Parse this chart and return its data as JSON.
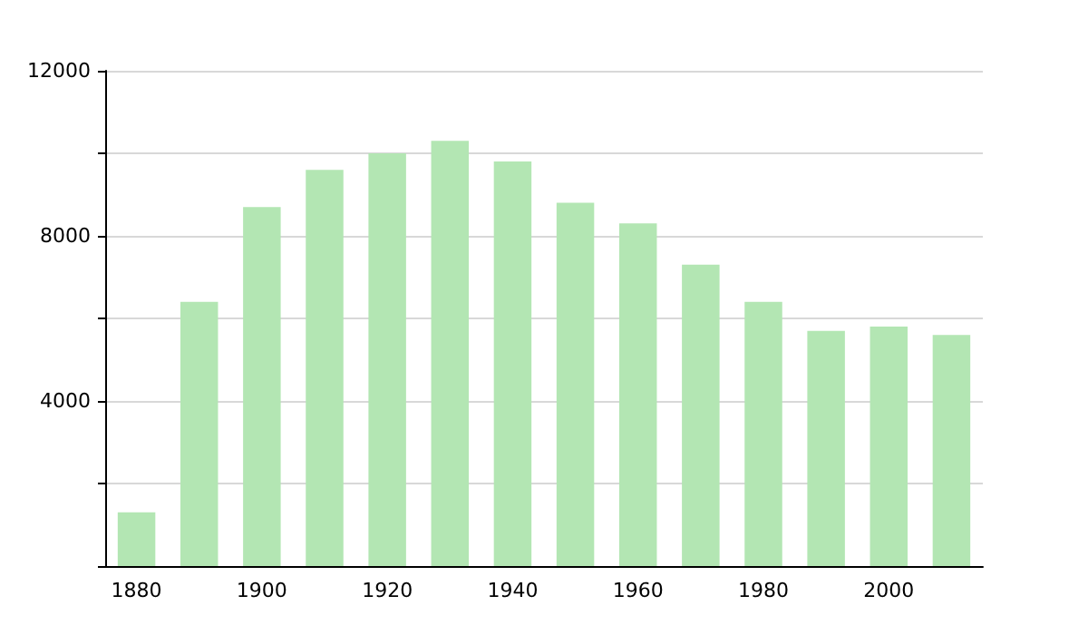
{
  "chart_data": {
    "type": "bar",
    "categories": [
      "1880",
      null,
      "1900",
      null,
      "1920",
      null,
      "1940",
      null,
      "1960",
      null,
      "1980",
      null,
      "2000",
      null
    ],
    "values": [
      1300,
      6400,
      8700,
      9600,
      10000,
      10300,
      9800,
      8800,
      8300,
      7300,
      6400,
      5700,
      5800,
      5600
    ],
    "color": "#b3e6b3",
    "ylim": [
      0,
      12000
    ],
    "yticks": [
      {
        "value": 0,
        "label": null
      },
      {
        "value": 2000,
        "label": null
      },
      4000,
      {
        "value": 6000,
        "label": null
      },
      8000,
      {
        "value": 10000,
        "label": null
      },
      12000
    ],
    "grid": "y"
  }
}
